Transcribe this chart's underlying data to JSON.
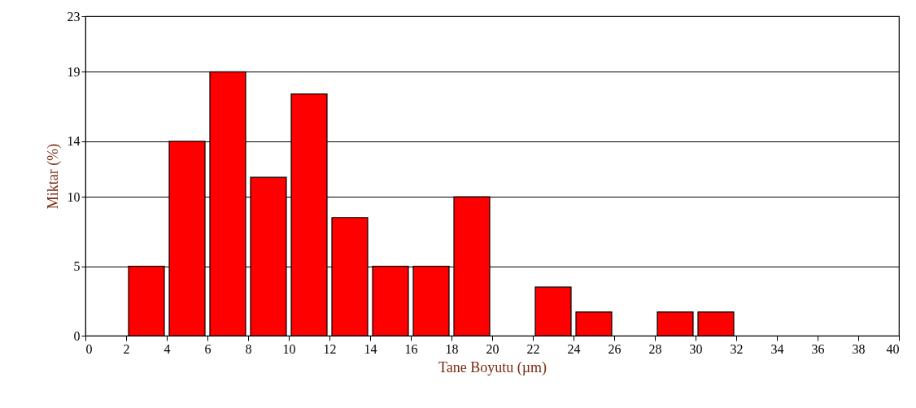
{
  "chart_data": {
    "type": "histogram",
    "xlabel": "Tane Boyutu (µm)",
    "ylabel": "Miktar (%)",
    "bins": [
      2,
      4,
      6,
      8,
      10,
      12,
      14,
      16,
      18,
      20,
      22,
      24,
      26,
      28,
      30,
      32
    ],
    "values": [
      5,
      14,
      19,
      11.4,
      17.4,
      8.5,
      5,
      5,
      10,
      0,
      3.5,
      1.7,
      0,
      1.7,
      1.7
    ],
    "color": "#ff0000",
    "xlim": [
      0,
      40
    ],
    "xticks": [
      0,
      2,
      4,
      6,
      8,
      10,
      12,
      14,
      16,
      18,
      20,
      22,
      24,
      26,
      28,
      30,
      32,
      34,
      36,
      38,
      40
    ],
    "ylim": [
      0,
      23
    ],
    "yticks": [
      0,
      5,
      10,
      14,
      19,
      23
    ],
    "grid": "y"
  }
}
